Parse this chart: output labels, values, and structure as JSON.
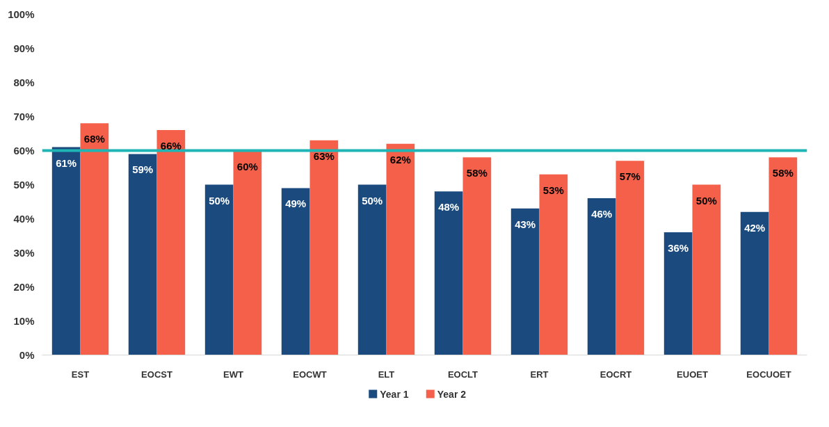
{
  "chart_data": {
    "type": "bar",
    "categories": [
      "EST",
      "EOCST",
      "EWT",
      "EOCWT",
      "ELT",
      "EOCLT",
      "ERT",
      "EOCRT",
      "EUOET",
      "EOCUOET"
    ],
    "series": [
      {
        "name": "Year 1",
        "color": "#1a4a7e",
        "values": [
          61,
          59,
          50,
          49,
          50,
          48,
          43,
          46,
          36,
          42
        ],
        "value_labels": [
          "61%",
          "59%",
          "50%",
          "49%",
          "50%",
          "48%",
          "43%",
          "46%",
          "36%",
          "42%"
        ]
      },
      {
        "name": "Year 2",
        "color": "#f4604a",
        "values": [
          68,
          66,
          60,
          63,
          62,
          58,
          53,
          57,
          50,
          58
        ],
        "value_labels": [
          "68%",
          "66%",
          "60%",
          "63%",
          "62%",
          "58%",
          "53%",
          "57%",
          "50%",
          "58%"
        ]
      }
    ],
    "ylim": [
      0,
      100
    ],
    "yticks": [
      {
        "value": 0,
        "label": "0%"
      },
      {
        "value": 10,
        "label": "10%"
      },
      {
        "value": 20,
        "label": "20%"
      },
      {
        "value": 30,
        "label": "30%"
      },
      {
        "value": 40,
        "label": "40%"
      },
      {
        "value": 50,
        "label": "50%"
      },
      {
        "value": 60,
        "label": "60%"
      },
      {
        "value": 70,
        "label": "70%"
      },
      {
        "value": 80,
        "label": "80%"
      },
      {
        "value": 90,
        "label": "90%"
      },
      {
        "value": 100,
        "label": "100%"
      }
    ],
    "ref_lines": [
      {
        "axis": "y",
        "value": 60,
        "label": null,
        "color": "#1fb5b5"
      }
    ],
    "grid": false,
    "legend": "bottom"
  }
}
